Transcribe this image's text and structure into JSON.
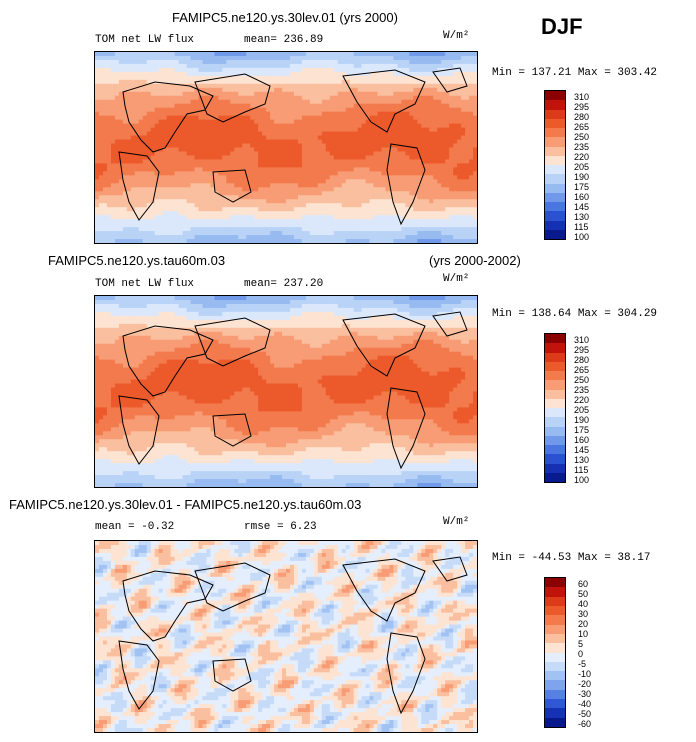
{
  "season": "DJF",
  "colors": {
    "warm": [
      "#8b0000",
      "#c1120b",
      "#dd3a1b",
      "#ec5a2c",
      "#f27a4c",
      "#f79c74",
      "#fabf9e",
      "#fde3d1"
    ],
    "cool": [
      "#dbe8fb",
      "#b9d3f7",
      "#97bbf1",
      "#7099ea",
      "#4a76e0",
      "#2a51d2",
      "#1530b4",
      "#081a8c"
    ],
    "diff_warm": [
      "#8b0000",
      "#c1120b",
      "#dd3a1b",
      "#ec5a2c",
      "#f27a4c",
      "#f79c74",
      "#fabf9e",
      "#fde3d1"
    ],
    "diff_cool": [
      "#e4eefc",
      "#c6dbf8",
      "#a1c2f3",
      "#7ea5ec",
      "#5680e2",
      "#3158d4",
      "#1532b6",
      "#07188a"
    ]
  },
  "chart_data": [
    {
      "type": "heatmap",
      "title": "FAMIPC5.ne120.ys.30lev.01 (yrs 2000)",
      "variable": "TOM net LW flux",
      "units": "W/m²",
      "mean_label": "mean= 236.89",
      "minmax_label": "Min = 137.21 Max = 303.42",
      "colorbar_levels": [
        "310",
        "295",
        "280",
        "265",
        "250",
        "235",
        "220",
        "205",
        "190",
        "175",
        "160",
        "145",
        "130",
        "115",
        "100"
      ]
    },
    {
      "type": "heatmap",
      "title_left": "FAMIPC5.ne120.ys.tau60m.03",
      "title_right": "(yrs 2000-2002)",
      "variable": "TOM net LW flux",
      "units": "W/m²",
      "mean_label": "mean= 237.20",
      "minmax_label": "Min = 138.64 Max = 304.29",
      "colorbar_levels": [
        "310",
        "295",
        "280",
        "265",
        "250",
        "235",
        "220",
        "205",
        "190",
        "175",
        "160",
        "145",
        "130",
        "115",
        "100"
      ]
    },
    {
      "type": "heatmap",
      "title": "FAMIPC5.ne120.ys.30lev.01 - FAMIPC5.ne120.ys.tau60m.03",
      "units": "W/m²",
      "mean_label": "mean =   -0.32",
      "rmse_label": "rmse =    6.23",
      "minmax_label": "Min = -44.53 Max =  38.17",
      "colorbar_levels": [
        "60",
        "50",
        "40",
        "30",
        "20",
        "10",
        "5",
        "0",
        "-5",
        "-10",
        "-20",
        "-30",
        "-40",
        "-50",
        "-60"
      ]
    }
  ]
}
